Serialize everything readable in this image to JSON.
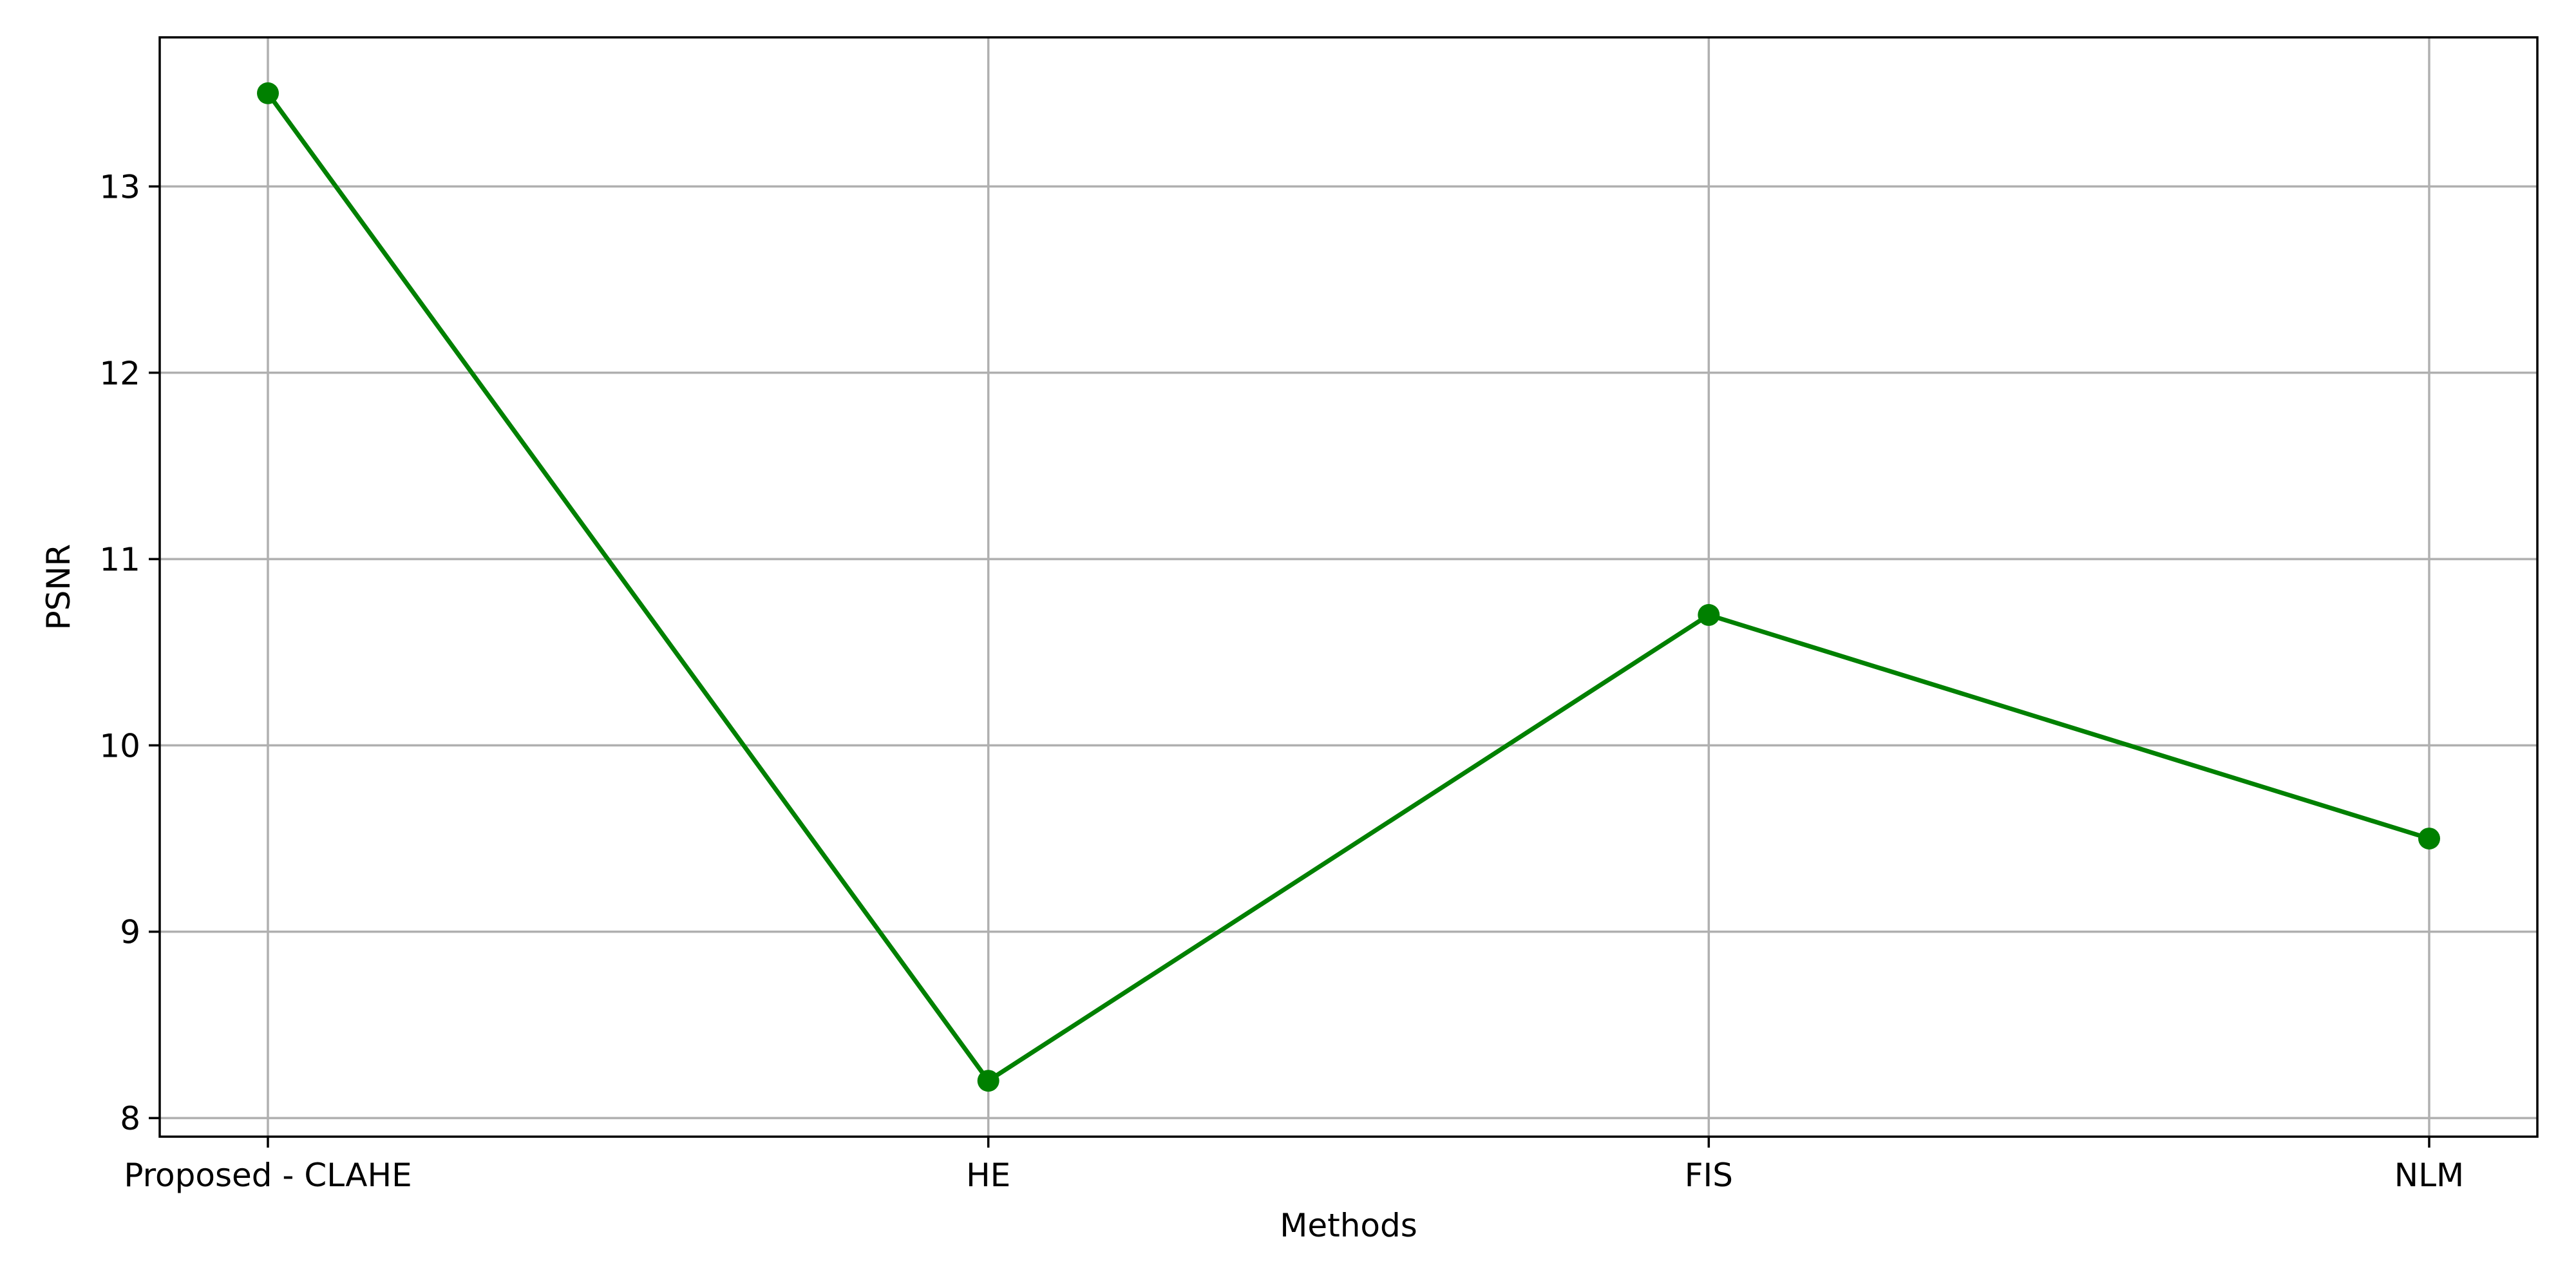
{
  "chart_data": {
    "type": "line",
    "categories": [
      "Proposed - CLAHE",
      "HE",
      "FIS",
      "NLM"
    ],
    "series": [
      {
        "values": [
          13.5,
          8.2,
          10.7,
          9.5
        ],
        "color": "#008000",
        "marker": "circle"
      }
    ],
    "xlabel": "Methods",
    "ylabel": "PSNR",
    "ylim": [
      7.9,
      13.8
    ],
    "yticks": [
      8,
      9,
      10,
      11,
      12,
      13
    ],
    "grid": true,
    "legend": "none"
  }
}
